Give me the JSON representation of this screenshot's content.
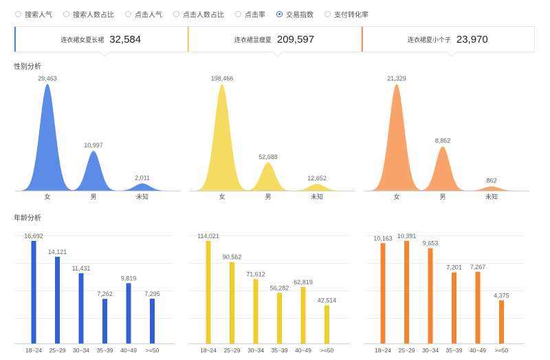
{
  "radios": [
    {
      "label": "搜索人气",
      "selected": false
    },
    {
      "label": "搜索人数占比",
      "selected": false
    },
    {
      "label": "点击人气",
      "selected": false
    },
    {
      "label": "点击人数占比",
      "selected": false
    },
    {
      "label": "点击率",
      "selected": false
    },
    {
      "label": "交易指数",
      "selected": true
    },
    {
      "label": "支付转化率",
      "selected": false
    }
  ],
  "cards": [
    {
      "label": "连衣裙女夏长裙",
      "value": "32,584",
      "color": "#4f7fe0"
    },
    {
      "label": "连衣裙显瘦夏",
      "value": "209,597",
      "color": "#f3d34a"
    },
    {
      "label": "连衣裙夏小个子",
      "value": "23,970",
      "color": "#f3925a"
    }
  ],
  "gender_title": "性别分析",
  "age_title": "年龄分析",
  "chart_data": [
    {
      "type": "area",
      "group": "gender",
      "color": "#5b8ce8",
      "categories": [
        "女",
        "男",
        "未知"
      ],
      "values": [
        29463,
        10997,
        2011
      ],
      "labels": [
        "29,463",
        "10,997",
        "2,011"
      ]
    },
    {
      "type": "area",
      "group": "gender",
      "color": "#f5dc60",
      "categories": [
        "女",
        "男",
        "未知"
      ],
      "values": [
        198466,
        52688,
        12652
      ],
      "labels": [
        "198,466",
        "52,688",
        "12,652"
      ]
    },
    {
      "type": "area",
      "group": "gender",
      "color": "#f8a46a",
      "categories": [
        "女",
        "男",
        "未知"
      ],
      "values": [
        21329,
        8862,
        862
      ],
      "labels": [
        "21,329",
        "8,862",
        "862"
      ]
    },
    {
      "type": "bar",
      "group": "age",
      "color": "#2f61d8",
      "categories": [
        "18~24",
        "25~29",
        "30~34",
        "35~39",
        "40~49",
        ">=50"
      ],
      "values": [
        16692,
        14121,
        11431,
        7262,
        9819,
        7295
      ],
      "labels": [
        "16,692",
        "14,121",
        "11,431",
        "7,262",
        "9,819",
        "7,295"
      ]
    },
    {
      "type": "bar",
      "group": "age",
      "color": "#efce2a",
      "categories": [
        "18~24",
        "25~29",
        "30~34",
        "35~39",
        "40~49",
        ">=50"
      ],
      "values": [
        114021,
        90562,
        71612,
        56282,
        62819,
        42514
      ],
      "labels": [
        "114,021",
        "90,562",
        "71,612",
        "56,282",
        "62,819",
        "42,514"
      ]
    },
    {
      "type": "bar",
      "group": "age",
      "color": "#f5842f",
      "categories": [
        "18~24",
        "25~29",
        "30~34",
        "35~39",
        "40~49",
        ">=50"
      ],
      "values": [
        10163,
        10391,
        9653,
        7201,
        7267,
        4375
      ],
      "labels": [
        "10,163",
        "10,391",
        "9,653",
        "7,201",
        "7,267",
        "4,375"
      ]
    }
  ]
}
